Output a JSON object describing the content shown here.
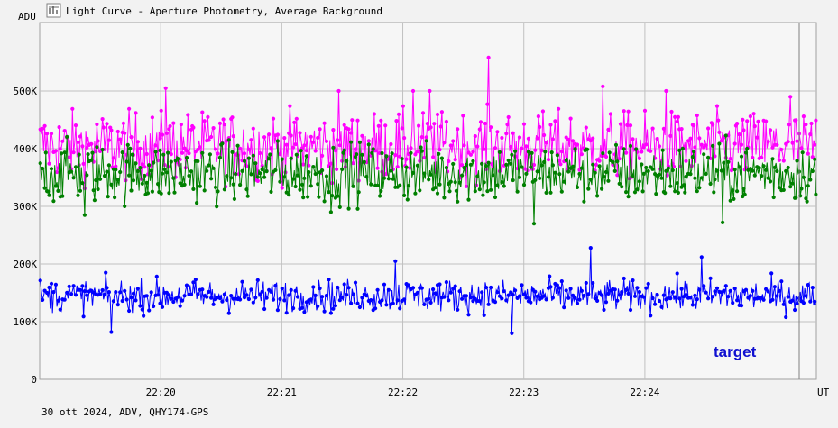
{
  "window": {
    "title": "Light Curve - Aperture Photometry, Average Background",
    "icon": "chart-window-icon"
  },
  "footer": {
    "info": "30 ott 2024, ADV, QHY174-GPS"
  },
  "chart_data": {
    "type": "line",
    "title": "Light Curve - Aperture Photometry, Average Background",
    "ylabel": "ADU",
    "xlabel": "UT",
    "ylim": [
      0,
      600000
    ],
    "xlim": [
      "22:19:00",
      "22:25:25"
    ],
    "y_ticks": [
      {
        "value": 0,
        "label": "0"
      },
      {
        "value": 100000,
        "label": "100K"
      },
      {
        "value": 200000,
        "label": "200K"
      },
      {
        "value": 300000,
        "label": "300K"
      },
      {
        "value": 400000,
        "label": "400K"
      },
      {
        "value": 500000,
        "label": "500K"
      }
    ],
    "x_ticks": [
      {
        "value": "22:20:00",
        "label": "22:20"
      },
      {
        "value": "22:21:00",
        "label": "22:21"
      },
      {
        "value": "22:22:00",
        "label": "22:22"
      },
      {
        "value": "22:23:00",
        "label": "22:23"
      },
      {
        "value": "22:24:00",
        "label": "22:24"
      }
    ],
    "grid": true,
    "annotations": [
      {
        "text": "target",
        "color": "#1010d0"
      }
    ],
    "series": [
      {
        "color": "#ff00ff",
        "mean": 405000,
        "scatter": 45000,
        "min": 280000,
        "max": 560000,
        "spikes": [
          {
            "t": "22:22:42",
            "value": 558000
          },
          {
            "t": "22:20:02",
            "value": 505000
          },
          {
            "t": "22:21:28",
            "value": 500000
          },
          {
            "t": "22:22:05",
            "value": 500000
          },
          {
            "t": "22:22:13",
            "value": 500000
          },
          {
            "t": "22:23:39",
            "value": 508000
          },
          {
            "t": "22:24:10",
            "value": 500000
          },
          {
            "t": "22:25:12",
            "value": 490000
          }
        ]
      },
      {
        "color": "#008000",
        "mean": 358000,
        "scatter": 40000,
        "min": 265000,
        "max": 460000,
        "spikes": [
          {
            "t": "22:19:22",
            "value": 285000
          },
          {
            "t": "22:21:24",
            "value": 290000
          },
          {
            "t": "22:23:05",
            "value": 270000
          },
          {
            "t": "22:24:38",
            "value": 272000
          }
        ]
      },
      {
        "color": "#0000ff",
        "mean": 145000,
        "scatter": 22000,
        "min": 80000,
        "max": 230000,
        "spikes": [
          {
            "t": "22:23:33",
            "value": 228000
          },
          {
            "t": "22:21:56",
            "value": 205000
          },
          {
            "t": "22:24:28",
            "value": 212000
          },
          {
            "t": "22:19:35",
            "value": 82000
          },
          {
            "t": "22:22:54",
            "value": 80000
          }
        ]
      }
    ]
  }
}
